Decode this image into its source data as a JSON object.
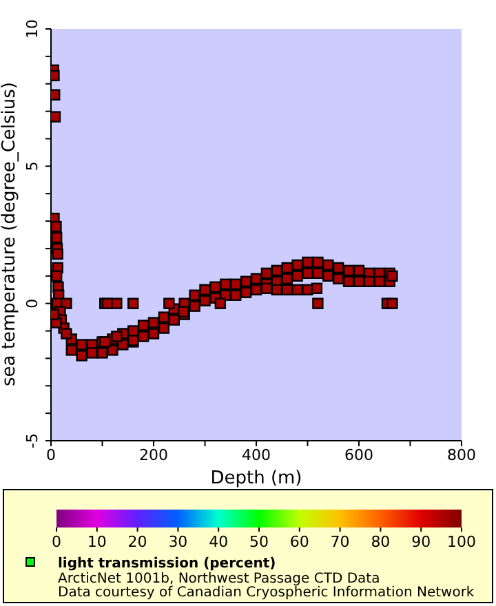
{
  "chart_data": {
    "type": "scatter",
    "xlabel": "Depth (m)",
    "ylabel": "sea temperature (degree_Celsius)",
    "clabel": "light transmission (percent)",
    "annotations": [
      "ArcticNet 1001b, Northwest Passage CTD Data",
      "Data courtesy of Canadian Cryospheric Information Network"
    ],
    "marker": "square",
    "xlim": [
      0,
      800
    ],
    "ylim": [
      -5,
      10
    ],
    "xticks": [
      0,
      {
        "value": 100,
        "label": null
      },
      200,
      {
        "value": 300,
        "label": null
      },
      400,
      {
        "value": 500,
        "label": null
      },
      600,
      {
        "value": 700,
        "label": null
      },
      800
    ],
    "yticks": [
      -5,
      {
        "value": -4,
        "label": null
      },
      {
        "value": -3,
        "label": null
      },
      {
        "value": -2,
        "label": null
      },
      {
        "value": -1,
        "label": null
      },
      0,
      {
        "value": 1,
        "label": null
      },
      {
        "value": 2,
        "label": null
      },
      {
        "value": 3,
        "label": null
      },
      {
        "value": 4,
        "label": null
      },
      5,
      {
        "value": 6,
        "label": null
      },
      {
        "value": 7,
        "label": null
      },
      {
        "value": 8,
        "label": null
      },
      {
        "value": 9,
        "label": null
      },
      10
    ],
    "clim": [
      0,
      100
    ],
    "cticks": [
      0,
      10,
      20,
      30,
      40,
      50,
      60,
      70,
      80,
      90,
      100
    ],
    "series": [
      {
        "x": [
          40,
          40,
          60,
          60,
          80,
          80,
          100,
          100,
          120,
          120,
          140,
          140,
          160,
          160,
          180,
          180,
          200,
          200,
          220,
          220,
          240,
          240,
          260,
          260,
          280,
          280,
          300,
          300,
          320,
          320,
          340,
          340,
          360,
          360,
          380,
          380,
          400,
          400,
          420,
          420,
          440,
          440,
          460,
          460,
          480,
          480,
          500,
          500,
          520,
          520,
          540,
          540,
          560,
          560,
          580,
          580,
          600,
          600,
          620,
          620,
          640,
          640,
          660,
          660,
          420,
          440,
          460,
          480,
          500,
          5,
          6,
          7,
          8,
          6,
          10,
          11,
          12,
          13,
          13,
          11,
          14,
          15,
          12,
          30,
          18,
          20,
          25,
          30,
          10,
          5,
          105,
          110,
          128,
          160,
          230,
          330,
          520,
          655,
          665,
          105,
          128,
          160,
          258,
          518,
          665
        ],
        "values": [
          -1.3,
          -1.7,
          -1.5,
          -1.9,
          -1.5,
          -1.8,
          -1.4,
          -1.8,
          -1.3,
          -1.7,
          -1.1,
          -1.5,
          -1.0,
          -1.4,
          -0.8,
          -1.2,
          -0.7,
          -1.1,
          -0.5,
          -0.9,
          -0.2,
          -0.6,
          0.0,
          -0.4,
          0.3,
          -0.1,
          0.5,
          0.1,
          0.6,
          0.2,
          0.7,
          0.3,
          0.7,
          0.3,
          0.8,
          0.4,
          0.9,
          0.5,
          1.1,
          0.7,
          1.2,
          0.8,
          1.3,
          0.9,
          1.4,
          1.0,
          1.5,
          1.1,
          1.5,
          1.1,
          1.4,
          1.0,
          1.3,
          0.9,
          1.2,
          0.8,
          1.2,
          0.8,
          1.1,
          0.8,
          1.1,
          0.8,
          1.1,
          0.8,
          0.55,
          0.5,
          0.5,
          0.5,
          0.5,
          8.5,
          8.3,
          7.6,
          6.8,
          3.1,
          2.8,
          2.4,
          2.0,
          1.8,
          1.3,
          1.0,
          0.6,
          0.3,
          0,
          0,
          -0.3,
          -0.6,
          -0.9,
          -1.1,
          -0.7,
          -0.4,
          0,
          0,
          0,
          0,
          0,
          0,
          0,
          0,
          0,
          -1.4,
          -1.2,
          -1.35,
          -0.3,
          0.55,
          1.0
        ],
        "cvalues": [
          96,
          96,
          96,
          96,
          96,
          96,
          96,
          96,
          96,
          96,
          96,
          96,
          96,
          96,
          96,
          96,
          96,
          96,
          96,
          96,
          96,
          96,
          96,
          96,
          96,
          96,
          96,
          96,
          96,
          96,
          96,
          96,
          96,
          96,
          96,
          96,
          96,
          96,
          96,
          96,
          96,
          96,
          96,
          96,
          96,
          96,
          96,
          96,
          96,
          96,
          96,
          96,
          96,
          96,
          96,
          96,
          96,
          96,
          96,
          96,
          96,
          96,
          96,
          96,
          96,
          96,
          96,
          96,
          96,
          96,
          96,
          96,
          96,
          96,
          96,
          96,
          96,
          96,
          96,
          96,
          96,
          96,
          96,
          96,
          96,
          96,
          96,
          96,
          96,
          96,
          96,
          96,
          96,
          96,
          96,
          96,
          96,
          96,
          96,
          96,
          96,
          96,
          96,
          96,
          96
        ]
      }
    ]
  }
}
